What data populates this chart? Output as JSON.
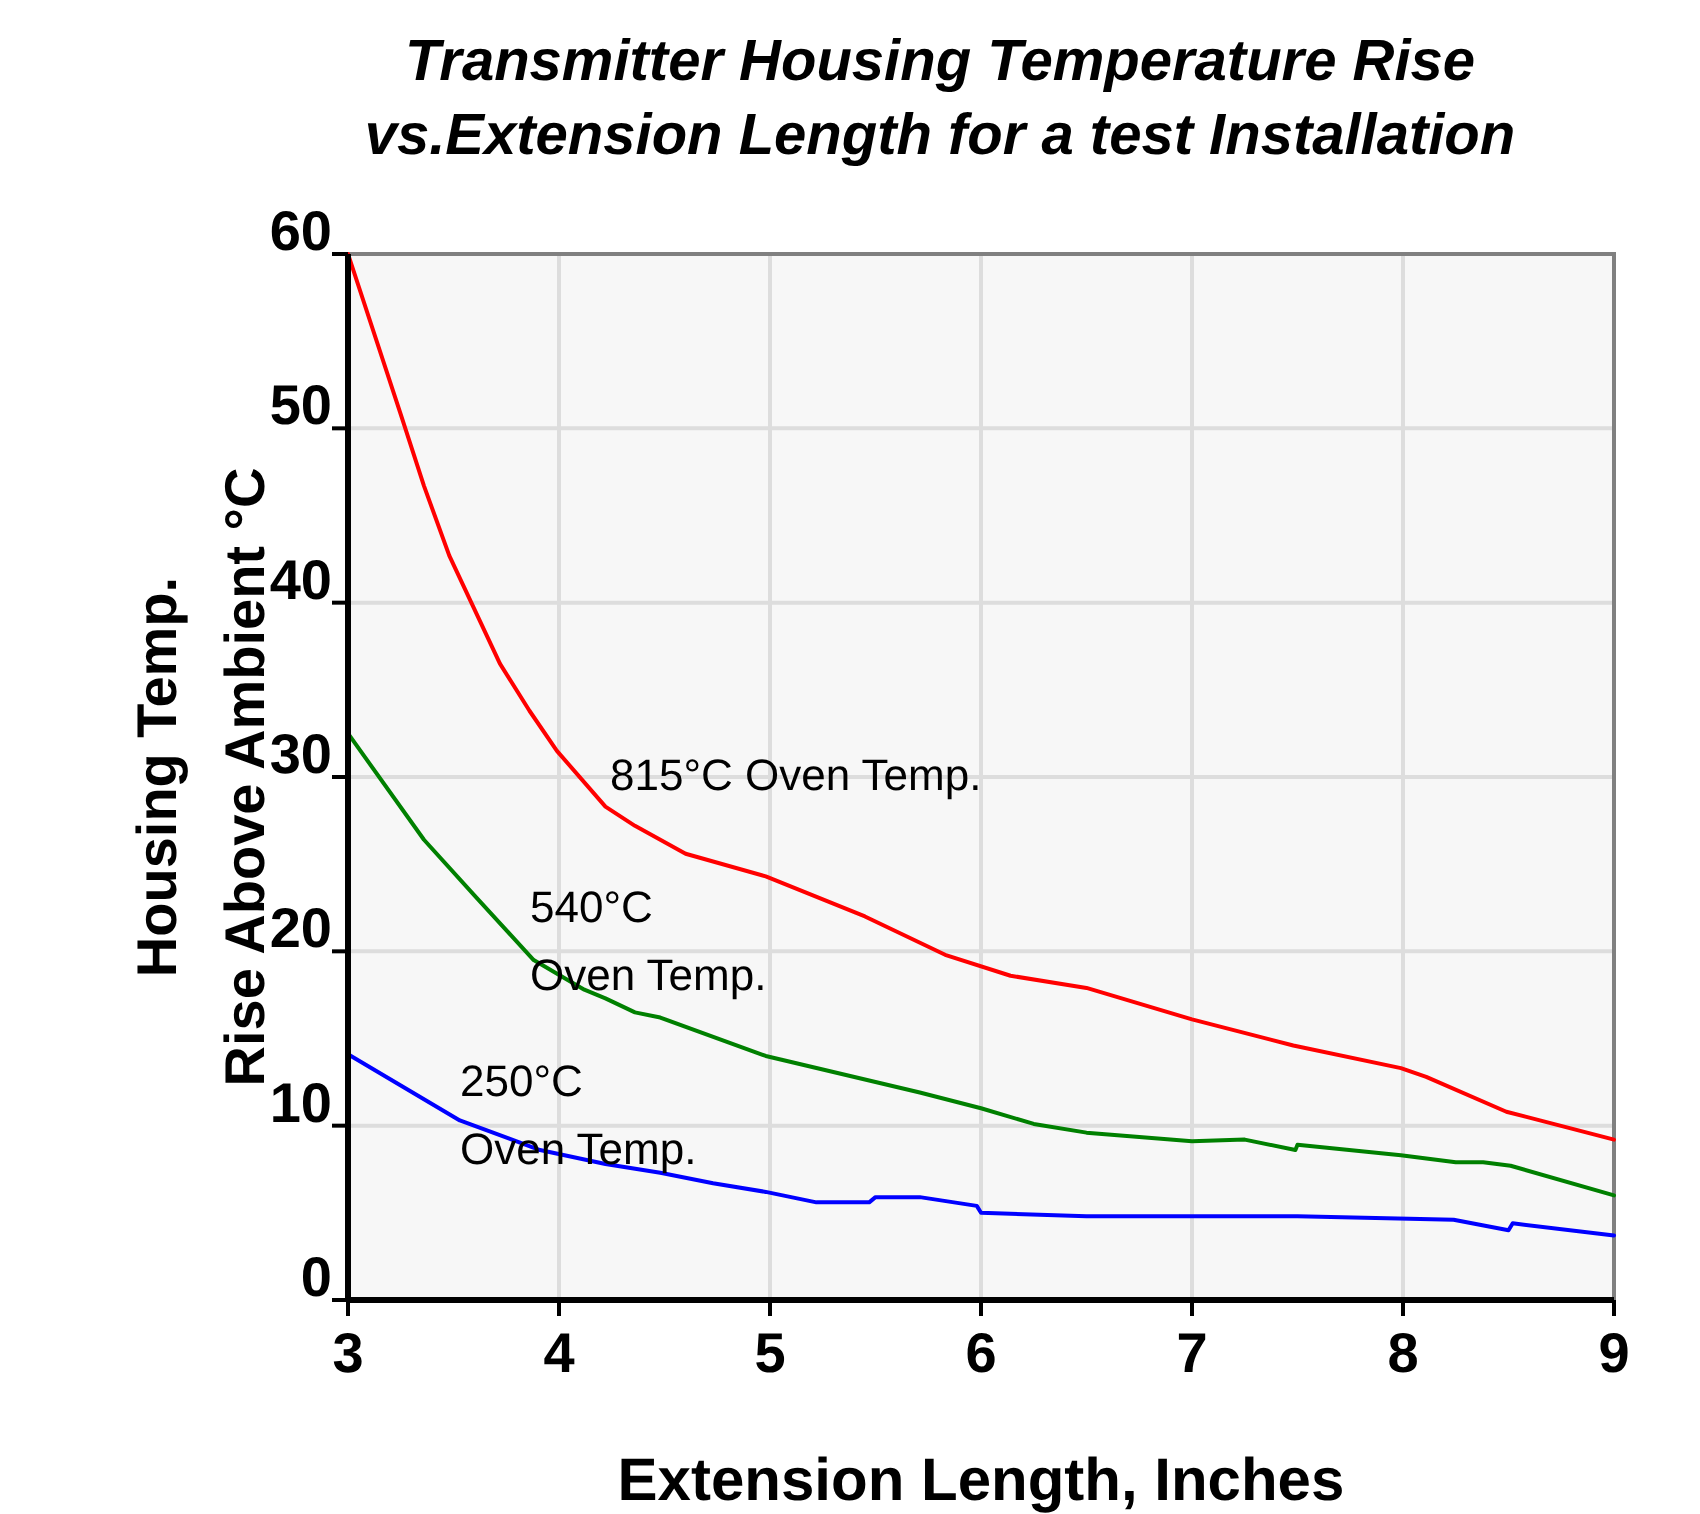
{
  "chart_data": {
    "type": "line",
    "title": "Transmitter Housing Temperature Rise\nvs.Extension Length for a test Installation",
    "xlabel": "Extension Length, Inches",
    "ylabel": "Housing Temp.\nRise Above Ambient °C",
    "xlim": [
      3,
      9
    ],
    "ylim": [
      0,
      60
    ],
    "xticks": [
      3,
      4,
      5,
      6,
      7,
      8,
      9
    ],
    "yticks": [
      0,
      10,
      20,
      30,
      40,
      50,
      60
    ],
    "grid": true,
    "line_style": "solid",
    "marker": "none",
    "series": [
      {
        "name": "815°C Oven Temp.",
        "color": "#ff0000",
        "x": [
          3,
          3.25,
          3.36,
          3.48,
          3.72,
          3.86,
          3.99,
          4.22,
          4.36,
          4.6,
          4.98,
          5.45,
          5.83,
          6.14,
          6.5,
          7,
          7.48,
          7.99,
          8.11,
          8.49,
          9
        ],
        "values": [
          60,
          50.8,
          46.7,
          42.7,
          36.5,
          33.8,
          31.5,
          28.3,
          27.2,
          25.6,
          24.3,
          22,
          19.8,
          18.6,
          17.9,
          16.1,
          14.6,
          13.3,
          12.8,
          10.8,
          9.2
        ]
      },
      {
        "name": "540°C\nOven Temp.",
        "color": "#008000",
        "x": [
          3,
          3.36,
          3.6,
          3.88,
          4.12,
          4.22,
          4.36,
          4.48,
          4.98,
          5.71,
          6,
          6.25,
          6.5,
          7,
          7.25,
          7.49,
          7.5,
          7.99,
          8.25,
          8.38,
          8.51,
          9
        ],
        "values": [
          32.5,
          26.4,
          23.2,
          19.5,
          17.8,
          17.3,
          16.5,
          16.2,
          14,
          11.9,
          11,
          10.1,
          9.6,
          9.1,
          9.2,
          8.6,
          8.9,
          8.3,
          7.9,
          7.9,
          7.7,
          6
        ]
      },
      {
        "name": "250°C\nOven Temp.",
        "color": "#0000ff",
        "x": [
          3,
          3.25,
          3.53,
          3.91,
          4.22,
          4.48,
          4.73,
          4.98,
          5.22,
          5.47,
          5.5,
          5.71,
          5.98,
          6,
          6.5,
          7.5,
          8.24,
          8.5,
          8.52,
          9
        ],
        "values": [
          14.1,
          12.3,
          10.3,
          8.6,
          7.8,
          7.3,
          6.7,
          6.2,
          5.6,
          5.6,
          5.9,
          5.9,
          5.4,
          5,
          4.8,
          4.8,
          4.6,
          4,
          4.4,
          3.7
        ]
      }
    ]
  }
}
